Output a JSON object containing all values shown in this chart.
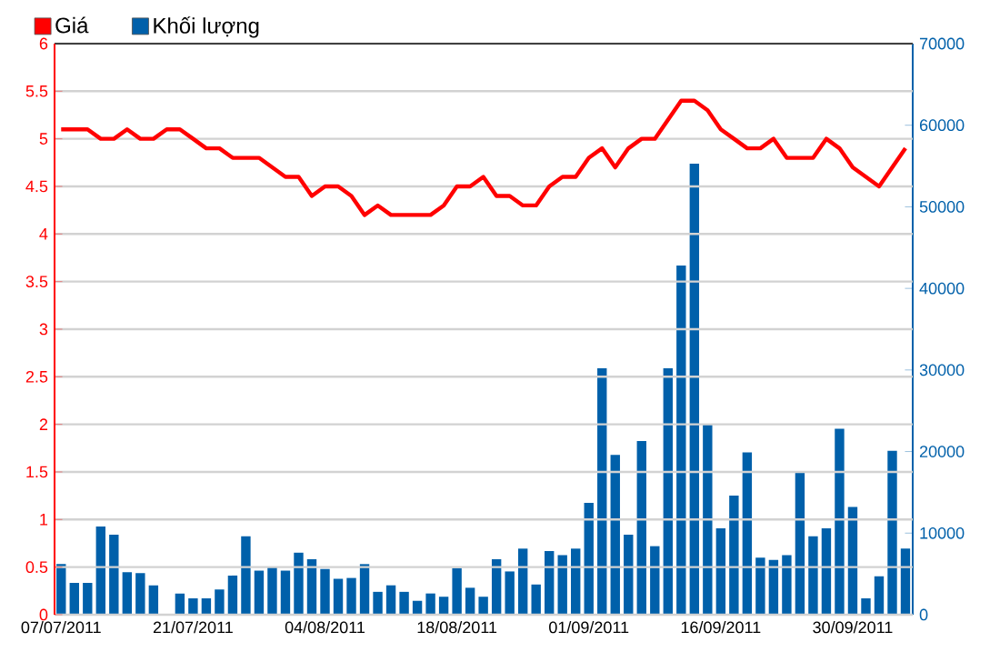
{
  "chart_data": {
    "type": "line",
    "categories": [
      "07/07/2011",
      null,
      null,
      null,
      null,
      null,
      null,
      null,
      null,
      null,
      "21/07/2011",
      null,
      null,
      null,
      null,
      null,
      null,
      null,
      null,
      null,
      "04/08/2011",
      null,
      null,
      null,
      null,
      null,
      null,
      null,
      null,
      null,
      "18/08/2011",
      null,
      null,
      null,
      null,
      null,
      null,
      null,
      null,
      null,
      "01/09/2011",
      null,
      null,
      null,
      null,
      null,
      null,
      null,
      null,
      null,
      "16/09/2011",
      null,
      null,
      null,
      null,
      null,
      null,
      null,
      null,
      null,
      "30/09/2011",
      null,
      null,
      null,
      null
    ],
    "series": [
      {
        "name": "Giá",
        "color": "#ff0000",
        "axis": "y",
        "values": [
          5.1,
          5.1,
          5.1,
          5.0,
          5.0,
          5.1,
          5.0,
          5.0,
          5.1,
          5.1,
          5.0,
          4.9,
          4.9,
          4.8,
          4.8,
          4.8,
          4.7,
          4.6,
          4.6,
          4.4,
          4.5,
          4.5,
          4.4,
          4.2,
          4.3,
          4.2,
          4.2,
          4.2,
          4.2,
          4.3,
          4.5,
          4.5,
          4.6,
          4.4,
          4.4,
          4.3,
          4.3,
          4.5,
          4.6,
          4.6,
          4.8,
          4.9,
          4.7,
          4.9,
          5.0,
          5.0,
          5.2,
          5.4,
          5.4,
          5.3,
          5.1,
          5.0,
          4.9,
          4.9,
          5.0,
          4.8,
          4.8,
          4.8,
          5.0,
          4.9,
          4.7,
          4.6,
          4.5,
          4.7,
          4.9
        ]
      },
      {
        "name": "Khối lượng",
        "color": "#0060aa",
        "type": "bar",
        "axis": "y2",
        "values": [
          6200,
          3900,
          3900,
          10800,
          9800,
          5200,
          5100,
          3600,
          null,
          2600,
          2000,
          2000,
          3100,
          4800,
          9600,
          5400,
          5900,
          5400,
          7600,
          6800,
          5600,
          4400,
          4500,
          6200,
          2800,
          3600,
          2800,
          1700,
          2600,
          2200,
          5700,
          3300,
          2200,
          6800,
          5300,
          8100,
          3700,
          7800,
          7300,
          8100,
          13700,
          30200,
          19600,
          9800,
          21300,
          8400,
          30200,
          42800,
          55300,
          23400,
          10600,
          14600,
          19900,
          7000,
          6700,
          7300,
          17400,
          9600,
          10600,
          22800,
          13200,
          2000,
          4700,
          20100,
          8100
        ]
      }
    ],
    "ylim": [
      0,
      6
    ],
    "yticks": [
      0,
      0.5,
      1,
      1.5,
      2,
      2.5,
      3,
      3.5,
      4,
      4.5,
      5,
      5.5,
      6
    ],
    "y2lim": [
      0,
      70000
    ],
    "y2ticks": [
      0,
      10000,
      20000,
      30000,
      40000,
      50000,
      60000,
      70000
    ],
    "grid": "y",
    "legend": "top left"
  }
}
